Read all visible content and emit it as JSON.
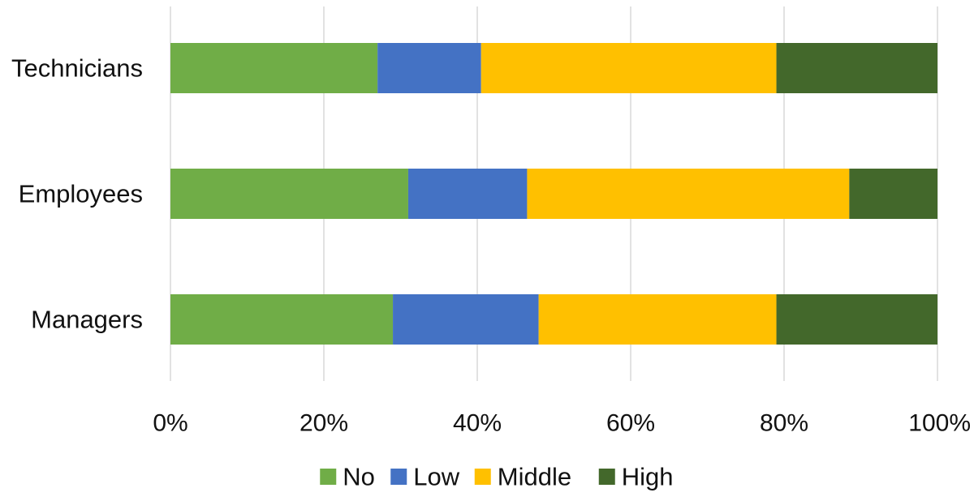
{
  "chart_data": {
    "type": "bar",
    "orientation": "horizontal",
    "stacked": true,
    "percent_stacked": true,
    "categories": [
      "Technicians",
      "Employees",
      "Managers"
    ],
    "series": [
      {
        "name": "No",
        "color": "#70AD47",
        "values": [
          27,
          31,
          29
        ]
      },
      {
        "name": "Low",
        "color": "#4472C4",
        "values": [
          13.5,
          15.5,
          19
        ]
      },
      {
        "name": "Middle",
        "color": "#FFC000",
        "values": [
          38.5,
          42,
          31
        ]
      },
      {
        "name": "High",
        "color": "#43682B",
        "values": [
          21,
          11.5,
          21
        ]
      }
    ],
    "x_ticks": [
      "0%",
      "20%",
      "40%",
      "60%",
      "80%",
      "100%"
    ],
    "xlim": [
      0,
      100
    ],
    "grid": "vertical",
    "legend_position": "bottom"
  }
}
